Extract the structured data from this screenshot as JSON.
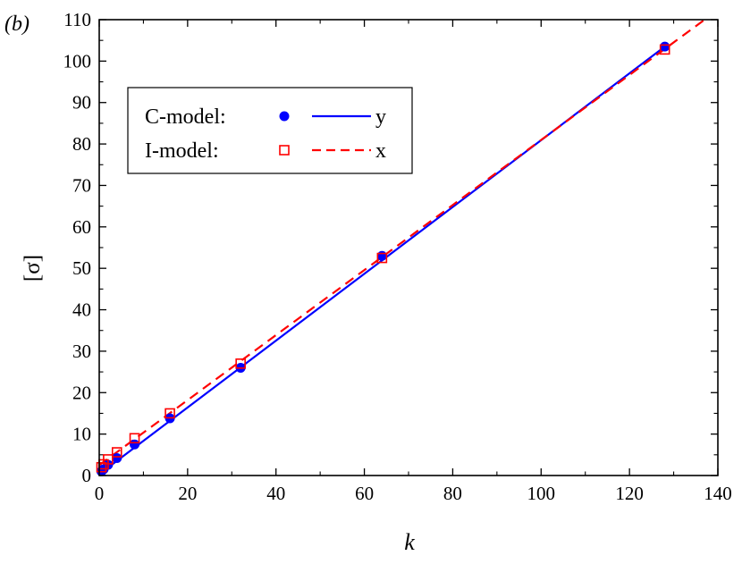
{
  "chart_data": {
    "type": "scatter",
    "panel_label": "(b)",
    "xlabel": "k",
    "ylabel": "[σ]",
    "xlim": [
      0,
      140
    ],
    "ylim": [
      0,
      110
    ],
    "x_ticks": [
      0,
      20,
      40,
      60,
      80,
      100,
      120,
      140
    ],
    "y_ticks": [
      0,
      10,
      20,
      30,
      40,
      50,
      60,
      70,
      80,
      90,
      100,
      110
    ],
    "grid": false,
    "legend_placement": "upper-left",
    "legend": {
      "rows": [
        {
          "label": "C-model:",
          "line_label": "y"
        },
        {
          "label": "I-model:",
          "line_label": "x"
        }
      ]
    },
    "series": [
      {
        "marker": "filled-circle",
        "color": "#0000ff",
        "points": [
          {
            "x": 0.5,
            "y": 1.0
          },
          {
            "x": 1,
            "y": 1.5
          },
          {
            "x": 2,
            "y": 2.6
          },
          {
            "x": 4,
            "y": 4.2
          },
          {
            "x": 8,
            "y": 7.5
          },
          {
            "x": 16,
            "y": 13.8
          },
          {
            "x": 32,
            "y": 26.0
          },
          {
            "x": 64,
            "y": 53.0
          },
          {
            "x": 128,
            "y": 103.5
          }
        ]
      },
      {
        "marker": "open-square",
        "color": "#ff0000",
        "points": [
          {
            "x": 0.5,
            "y": 2.0
          },
          {
            "x": 1,
            "y": 2.7
          },
          {
            "x": 2,
            "y": 3.9
          },
          {
            "x": 4,
            "y": 5.6
          },
          {
            "x": 8,
            "y": 9.0
          },
          {
            "x": 16,
            "y": 15.0
          },
          {
            "x": 32,
            "y": 27.0
          },
          {
            "x": 64,
            "y": 52.5
          },
          {
            "x": 128,
            "y": 102.8
          }
        ]
      },
      {
        "line_style": "solid",
        "color": "#0000ff",
        "points": [
          {
            "x": 0,
            "y": 0.3
          },
          {
            "x": 128,
            "y": 103.5
          }
        ]
      },
      {
        "line_style": "dashed",
        "color": "#ff0000",
        "points": [
          {
            "x": 0,
            "y": 2.5
          },
          {
            "x": 137,
            "y": 110
          }
        ]
      }
    ]
  }
}
